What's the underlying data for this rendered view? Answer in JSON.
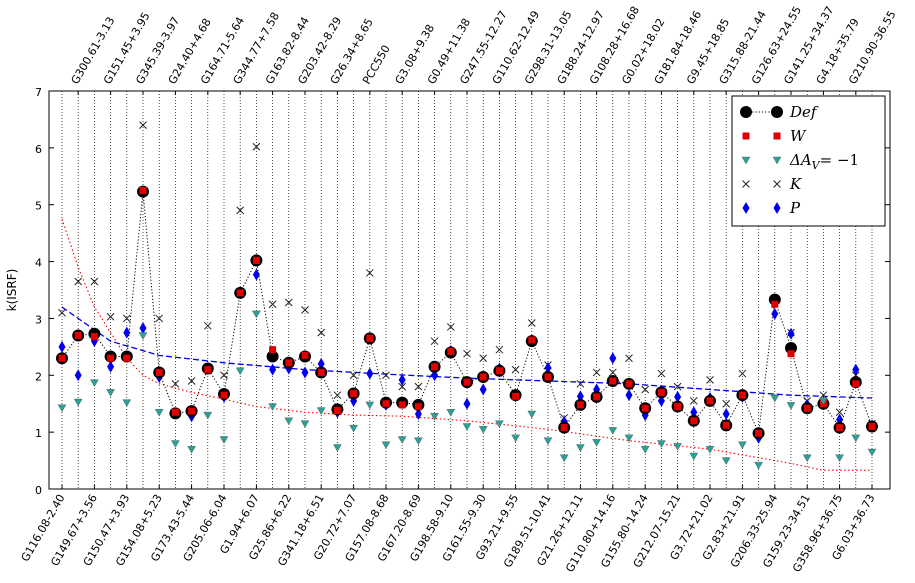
{
  "chart_data": {
    "type": "line",
    "title": "",
    "xlabel": "",
    "ylabel": "k(ISRF)",
    "ylim": [
      0,
      7
    ],
    "yticks": [
      0,
      1,
      2,
      3,
      4,
      5,
      6,
      7
    ],
    "grid": "vertical-dotted",
    "legend_position": "top-right",
    "categories": [
      "G116.08-2.40",
      "G300.61-3.13",
      "G149.67+3.56",
      "G151.45+3.95",
      "G150.47+3.93",
      "G345.39-3.97",
      "G154.08+5.23",
      "G24.40+4.68",
      "G173.43-5.44",
      "G164.71-5.64",
      "G205.06-6.04",
      "G344.77+7.58",
      "G1.94+6.07",
      "G163.82-8.44",
      "G25.86+6.22",
      "G203.42-8.29",
      "G341.18+6.51",
      "G26.34+8.65",
      "G20.72+7.07",
      "PCC550",
      "G157.08-8.68",
      "G3.08+9.38",
      "G167.20-8.69",
      "G0.49+11.38",
      "G198.58-9.10",
      "G247.55-12.27",
      "G161.55-9.30",
      "G110.62-12.49",
      "G93.21+9.55",
      "G298.31-13.05",
      "G189.51-10.41",
      "G188.24-12.97",
      "G21.26+12.11",
      "G108.28+16.68",
      "G110.80+14.16",
      "G0.02+18.02",
      "G155.80-14.24",
      "G181.84-18.46",
      "G212.07-15.21",
      "G9.45+18.85",
      "G3.72+21.02",
      "G315.88-21.44",
      "G2.83+21.91",
      "G126.63+24.55",
      "G206.33-25.94",
      "G141.25+34.37",
      "G159.23-34.51",
      "G4.18+35.79",
      "G358.96+36.75",
      "G210.90-36.55",
      "G6.03+36.73"
    ],
    "bottom_tick_labels": [
      "G116.08-2.40",
      "G149.67+3.56",
      "G150.47+3.93",
      "G154.08+5.23",
      "G173.43-5.44",
      "G205.06-6.04",
      "G1.94+6.07",
      "G25.86+6.22",
      "G341.18+6.51",
      "G20.72+7.07",
      "G157.08-8.68",
      "G167.20-8.69",
      "G198.58-9.10",
      "G161.55-9.30",
      "G93.21+9.55",
      "G189.51-10.41",
      "G21.26+12.11",
      "G110.80+14.16",
      "G155.80-14.24",
      "G212.07-15.21",
      "G3.72+21.02",
      "G2.83+21.91",
      "G206.33-25.94",
      "G159.23-34.51",
      "G358.96+36.75",
      "G6.03+36.73"
    ],
    "top_tick_labels": [
      "G300.61-3.13",
      "G151.45+3.95",
      "G345.39-3.97",
      "G24.40+4.68",
      "G164.71-5.64",
      "G344.77+7.58",
      "G163.82-8.44",
      "G203.42-8.29",
      "G26.34+8.65",
      "PCC550",
      "G3.08+9.38",
      "G0.49+11.38",
      "G247.55-12.27",
      "G110.62-12.49",
      "G298.31-13.05",
      "G188.24-12.97",
      "G108.28+16.68",
      "G0.02+18.02",
      "G181.84-18.46",
      "G9.45+18.85",
      "G315.88-21.44",
      "G126.63+24.55",
      "G141.25+34.37",
      "G4.18+35.79",
      "G210.90-36.55"
    ],
    "series": [
      {
        "name": "Def",
        "legend_label": "Def",
        "marker": "circle",
        "color": "#000000",
        "linestyle": "dotted",
        "values": [
          2.3,
          2.7,
          2.73,
          2.33,
          2.33,
          5.23,
          2.05,
          1.33,
          1.37,
          2.12,
          1.67,
          3.45,
          4.02,
          2.33,
          2.22,
          2.33,
          2.05,
          1.4,
          1.68,
          2.65,
          1.52,
          1.52,
          1.48,
          2.15,
          2.4,
          1.88,
          1.97,
          2.08,
          1.65,
          2.6,
          1.97,
          1.08,
          1.48,
          1.62,
          1.9,
          1.85,
          1.42,
          1.7,
          1.45,
          1.2,
          1.55,
          1.12,
          1.65,
          0.98,
          3.33,
          2.48,
          1.42,
          1.5,
          1.08,
          1.88,
          1.1
        ]
      },
      {
        "name": "W",
        "legend_label": "W",
        "marker": "square",
        "color": "#e00000",
        "values": [
          2.3,
          2.7,
          2.68,
          2.3,
          2.3,
          5.25,
          2.05,
          1.35,
          1.37,
          2.1,
          1.65,
          3.45,
          4.02,
          2.45,
          2.22,
          2.35,
          2.05,
          1.38,
          1.68,
          2.65,
          1.5,
          1.48,
          1.45,
          2.15,
          2.42,
          1.88,
          1.97,
          2.08,
          1.63,
          2.62,
          1.97,
          1.08,
          1.48,
          1.62,
          1.9,
          1.85,
          1.42,
          1.7,
          1.45,
          1.2,
          1.55,
          1.12,
          1.65,
          0.98,
          3.25,
          2.38,
          1.42,
          1.5,
          1.08,
          1.85,
          1.1
        ]
      },
      {
        "name": "ΔA_V = −1",
        "legend_label": "ΔA",
        "legend_sub": "V",
        "legend_suffix": "= −1",
        "marker": "triangle-down",
        "color": "#2aa198",
        "values": [
          1.43,
          1.53,
          1.87,
          1.7,
          1.52,
          2.7,
          1.35,
          0.8,
          0.7,
          1.3,
          0.87,
          2.08,
          3.08,
          1.45,
          1.2,
          1.15,
          1.38,
          0.73,
          1.07,
          1.48,
          0.78,
          0.87,
          0.85,
          1.28,
          1.35,
          1.1,
          1.05,
          1.15,
          0.9,
          1.32,
          0.85,
          0.55,
          0.73,
          0.82,
          1.03,
          0.9,
          0.7,
          0.8,
          0.75,
          0.58,
          0.7,
          0.5,
          0.78,
          0.42,
          1.6,
          1.47,
          0.55,
          1.55,
          0.55,
          0.9,
          0.65
        ]
      },
      {
        "name": "K",
        "legend_label": "K",
        "marker": "x",
        "color": "#222222",
        "values": [
          3.1,
          3.65,
          3.65,
          3.03,
          3.0,
          6.4,
          3.0,
          1.85,
          1.9,
          2.87,
          2.0,
          4.9,
          6.02,
          3.25,
          3.28,
          3.15,
          2.75,
          1.65,
          2.0,
          3.8,
          2.0,
          1.8,
          1.8,
          2.6,
          2.85,
          2.38,
          2.3,
          2.45,
          2.1,
          2.92,
          2.18,
          1.25,
          1.85,
          2.05,
          2.05,
          2.3,
          1.75,
          2.03,
          1.8,
          1.55,
          1.92,
          1.5,
          2.03,
          1.0,
          3.35,
          2.75,
          1.55,
          1.65,
          1.35,
          2.0,
          1.15
        ]
      },
      {
        "name": "P",
        "legend_label": "P",
        "marker": "diamond",
        "color": "#0000ee",
        "values": [
          2.5,
          2.0,
          2.6,
          2.15,
          2.75,
          2.83,
          1.97,
          1.33,
          1.28,
          2.12,
          1.62,
          3.45,
          3.77,
          2.1,
          2.12,
          2.05,
          2.2,
          1.35,
          1.55,
          2.03,
          1.48,
          1.92,
          1.32,
          2.0,
          2.43,
          1.5,
          1.75,
          2.12,
          1.63,
          2.62,
          2.13,
          1.18,
          1.63,
          1.75,
          2.3,
          1.65,
          1.3,
          1.55,
          1.62,
          1.35,
          1.6,
          1.32,
          1.62,
          0.9,
          3.08,
          2.73,
          1.48,
          1.52,
          1.22,
          2.1,
          1.12
        ]
      }
    ],
    "trend_lines": [
      {
        "name": "blue dashed trend",
        "color": "#0000ee",
        "style": "dashed",
        "x_index": [
          0,
          3,
          6,
          10,
          15,
          20,
          25,
          30,
          35,
          40,
          45,
          50
        ],
        "values": [
          3.2,
          2.6,
          2.35,
          2.22,
          2.1,
          2.02,
          1.95,
          1.9,
          1.85,
          1.75,
          1.65,
          1.6
        ]
      },
      {
        "name": "red dotted trend",
        "color": "#ff0000",
        "style": "dotted",
        "x_index": [
          0,
          1,
          2,
          3,
          4,
          5,
          6,
          8,
          10,
          12,
          15,
          18,
          21,
          25,
          30,
          35,
          40,
          45,
          47,
          50
        ],
        "values": [
          4.75,
          3.9,
          3.2,
          2.75,
          2.3,
          2.0,
          1.85,
          1.7,
          1.58,
          1.45,
          1.35,
          1.3,
          1.28,
          1.2,
          1.05,
          0.85,
          0.7,
          0.45,
          0.33,
          0.33
        ]
      }
    ]
  }
}
